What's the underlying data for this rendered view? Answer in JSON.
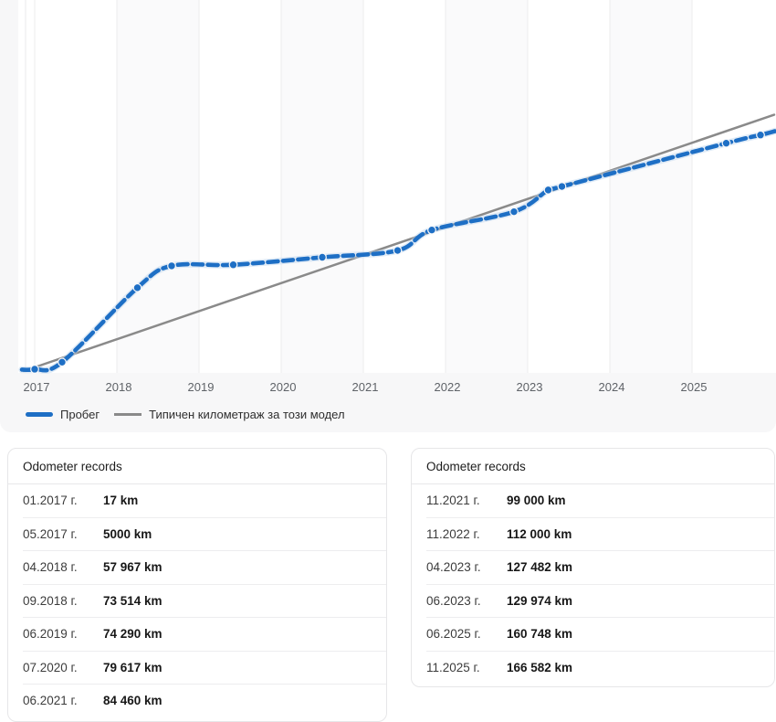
{
  "chart": {
    "x_ticks": [
      "2017",
      "2018",
      "2019",
      "2020",
      "2021",
      "2022",
      "2023",
      "2024",
      "2025"
    ],
    "legend": [
      {
        "label": "Пробег",
        "color": "#1e6fc5"
      },
      {
        "label": "Типичен километраж за този модел",
        "color": "#8a8a8a"
      }
    ],
    "colors": {
      "mileage_line": "#1e6fc5",
      "typical_line": "#8a8a8a",
      "gridline": "#ececee",
      "axis_text": "#5f6368",
      "card_background": "#f7f7f8"
    }
  },
  "chart_data": {
    "type": "line",
    "title": "",
    "xlabel": "",
    "ylabel": "",
    "x_ticks": [
      "2017",
      "2018",
      "2019",
      "2020",
      "2021",
      "2022",
      "2023",
      "2024",
      "2025"
    ],
    "x_range": [
      "01.2017",
      "01.2026"
    ],
    "y_range_km": [
      0,
      263000
    ],
    "y_axis_visible": false,
    "grid": "vertical-only",
    "legend_position": "bottom-left",
    "series": [
      {
        "name": "Пробег",
        "color": "#1e6fc5",
        "style": "dashed-with-dots",
        "points": [
          {
            "date": "01.2017",
            "km": 17
          },
          {
            "date": "05.2017",
            "km": 5000
          },
          {
            "date": "04.2018",
            "km": 57967
          },
          {
            "date": "09.2018",
            "km": 73514
          },
          {
            "date": "06.2019",
            "km": 74290
          },
          {
            "date": "07.2020",
            "km": 79617
          },
          {
            "date": "06.2021",
            "km": 84460
          },
          {
            "date": "11.2021",
            "km": 99000
          },
          {
            "date": "11.2022",
            "km": 112000
          },
          {
            "date": "04.2023",
            "km": 127482
          },
          {
            "date": "06.2023",
            "km": 129974
          },
          {
            "date": "06.2025",
            "km": 160748
          },
          {
            "date": "11.2025",
            "km": 166582
          }
        ]
      },
      {
        "name": "Типичен километраж за този модел",
        "color": "#8a8a8a",
        "style": "solid",
        "points": [
          {
            "date": "01.2017",
            "km": 0
          },
          {
            "date": "01.2026",
            "km": 181000
          }
        ]
      }
    ]
  },
  "tables": [
    {
      "title": "Odometer records",
      "rows": [
        {
          "date": "01.2017 г.",
          "value": "17 km"
        },
        {
          "date": "05.2017 г.",
          "value": "5000 km"
        },
        {
          "date": "04.2018 г.",
          "value": "57 967 km"
        },
        {
          "date": "09.2018 г.",
          "value": "73 514 km"
        },
        {
          "date": "06.2019 г.",
          "value": "74 290 km"
        },
        {
          "date": "07.2020 г.",
          "value": "79 617 km"
        },
        {
          "date": "06.2021 г.",
          "value": "84 460 km"
        }
      ]
    },
    {
      "title": "Odometer records",
      "rows": [
        {
          "date": "11.2021 г.",
          "value": "99 000 km"
        },
        {
          "date": "11.2022 г.",
          "value": "112 000 km"
        },
        {
          "date": "04.2023 г.",
          "value": "127 482 km"
        },
        {
          "date": "06.2023 г.",
          "value": "129 974 km"
        },
        {
          "date": "06.2025 г.",
          "value": "160 748 km"
        },
        {
          "date": "11.2025 г.",
          "value": "166 582 km"
        }
      ]
    }
  ]
}
